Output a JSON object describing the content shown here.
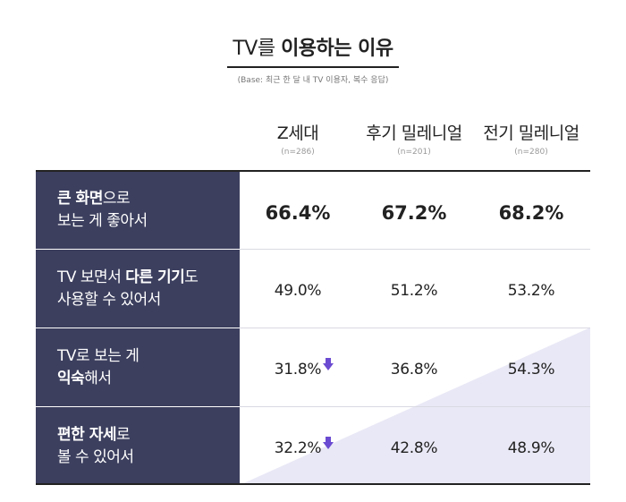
{
  "title": {
    "part1": "TV를 ",
    "part2": "이용하는 이유"
  },
  "subtitle": "(Base: 최근 한 달 내 TV 이용자, 복수 응답)",
  "colors": {
    "row_label_bg": "#3c3f5e",
    "triangle": "#e9e8f6",
    "down_arrow": "#6b4bd1"
  },
  "columns": [
    {
      "name": "Z세대",
      "n": "(n=286)"
    },
    {
      "name": "후기 밀레니얼",
      "n": "(n=201)"
    },
    {
      "name": "전기 밀레니얼",
      "n": "(n=280)"
    }
  ],
  "rows": [
    {
      "label_line1_bold": "큰 화면",
      "label_line1_rest": "으로",
      "label_line2": "보는 게 좋아서",
      "values": [
        "66.4%",
        "67.2%",
        "68.2%"
      ]
    },
    {
      "label_line1_pre": "TV 보면서 ",
      "label_line1_bold": "다른 기기",
      "label_line1_rest": "도",
      "label_line2": "사용할 수 있어서",
      "values": [
        "49.0%",
        "51.2%",
        "53.2%"
      ]
    },
    {
      "label_line1": "TV로 보는 게",
      "label_line2_bold": "익숙",
      "label_line2_rest": "해서",
      "values": [
        "31.8%",
        "36.8%",
        "54.3%"
      ]
    },
    {
      "label_line1_bold": "편한 자세",
      "label_line1_rest": "로",
      "label_line2": "볼 수 있어서",
      "values": [
        "32.2%",
        "42.8%",
        "48.9%"
      ]
    }
  ],
  "chart_data": {
    "type": "table",
    "title": "TV를 이용하는 이유",
    "subtitle": "(Base: 최근 한 달 내 TV 이용자, 복수 응답)",
    "categories": [
      "큰 화면으로 보는 게 좋아서",
      "TV 보면서 다른 기기도 사용할 수 있어서",
      "TV로 보는 게 익숙해서",
      "편한 자세로 볼 수 있어서"
    ],
    "series": [
      {
        "name": "Z세대",
        "n": "(n=286)",
        "values": [
          66.4,
          49.0,
          31.8,
          32.2
        ]
      },
      {
        "name": "후기 밀레니얼",
        "n": "(n=201)",
        "values": [
          67.2,
          51.2,
          36.8,
          42.8
        ]
      },
      {
        "name": "전기 밀레니얼",
        "n": "(n=280)",
        "values": [
          68.2,
          53.2,
          54.3,
          48.9
        ]
      }
    ],
    "unit": "%",
    "down_arrow_markers": [
      {
        "series": "Z세대",
        "category": "TV로 보는 게 익숙해서"
      },
      {
        "series": "Z세대",
        "category": "편한 자세로 볼 수 있어서"
      }
    ]
  }
}
